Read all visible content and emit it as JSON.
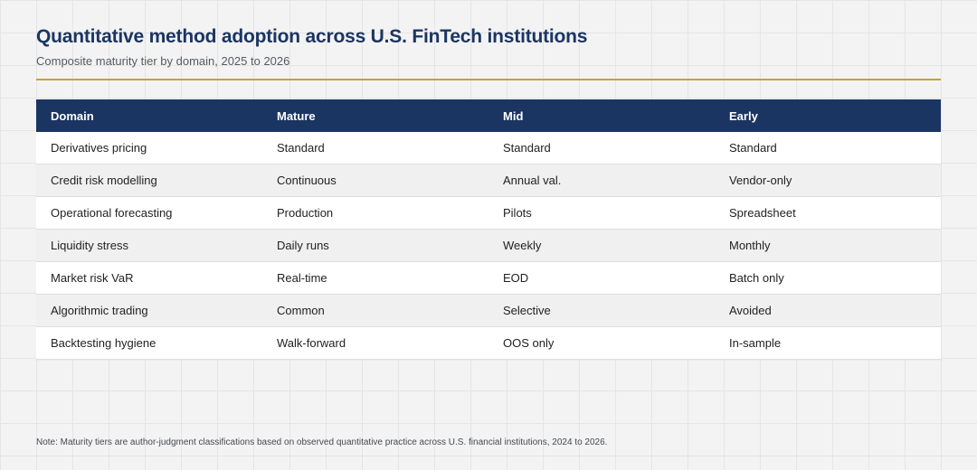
{
  "chart_data": {
    "type": "table",
    "title": "Quantitative method adoption across U.S. FinTech institutions",
    "subtitle": "Composite maturity tier by domain, 2025 to 2026",
    "columns": [
      "Domain",
      "Mature",
      "Mid",
      "Early"
    ],
    "rows": [
      [
        "Derivatives pricing",
        "Standard",
        "Standard",
        "Standard"
      ],
      [
        "Credit risk modelling",
        "Continuous",
        "Annual val.",
        "Vendor-only"
      ],
      [
        "Operational forecasting",
        "Production",
        "Pilots",
        "Spreadsheet"
      ],
      [
        "Liquidity stress",
        "Daily runs",
        "Weekly",
        "Monthly"
      ],
      [
        "Market risk VaR",
        "Real-time",
        "EOD",
        "Batch only"
      ],
      [
        "Algorithmic trading",
        "Common",
        "Selective",
        "Avoided"
      ],
      [
        "Backtesting hygiene",
        "Walk-forward",
        "OOS only",
        "In-sample"
      ]
    ],
    "note": "Note: Maturity tiers are author-judgment classifications based on observed quantitative practice across U.S. financial institutions, 2024 to 2026."
  },
  "colors": {
    "header_bg": "#1b3563",
    "title": "#1b3563",
    "accent_rule": "#c9a03c",
    "row_alt": "#f0f0f0"
  }
}
